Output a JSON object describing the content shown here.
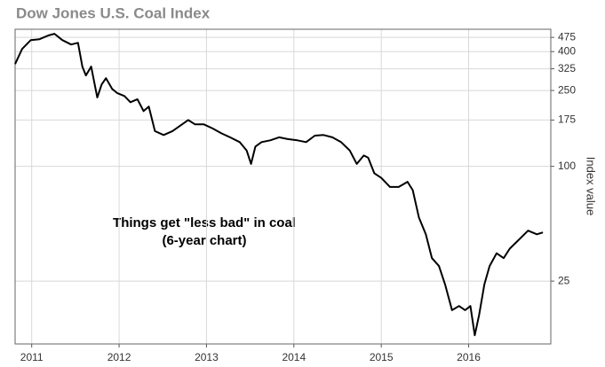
{
  "chart_data": {
    "type": "line",
    "title": "Dow Jones U.S. Coal Index",
    "y_label": "Index value",
    "annotations": [
      "Things get \"less bad\" in coal",
      "(6-year chart)"
    ],
    "color": "#000000",
    "log_y": true,
    "grid": true,
    "y_axis_side": "right",
    "xlim": [
      2010.81,
      2016.94
    ],
    "xticks": [
      2011,
      2012,
      2013,
      2014,
      2015,
      2016
    ],
    "ylim": [
      11.7,
      524
    ],
    "yticks": [
      25,
      100,
      175,
      250,
      325,
      400,
      475
    ],
    "x": [
      2010.81,
      2010.89,
      2010.99,
      2011.09,
      2011.19,
      2011.26,
      2011.35,
      2011.45,
      2011.53,
      2011.58,
      2011.62,
      2011.68,
      2011.75,
      2011.8,
      2011.85,
      2011.92,
      2011.98,
      2012.06,
      2012.13,
      2012.21,
      2012.28,
      2012.34,
      2012.41,
      2012.51,
      2012.61,
      2012.72,
      2012.79,
      2012.87,
      2012.97,
      2013.07,
      2013.17,
      2013.27,
      2013.38,
      2013.46,
      2013.51,
      2013.56,
      2013.63,
      2013.73,
      2013.83,
      2013.93,
      2014.04,
      2014.14,
      2014.24,
      2014.34,
      2014.44,
      2014.54,
      2014.64,
      2014.72,
      2014.8,
      2014.85,
      2014.92,
      2015.0,
      2015.1,
      2015.2,
      2015.3,
      2015.36,
      2015.43,
      2015.51,
      2015.58,
      2015.66,
      2015.73,
      2015.81,
      2015.89,
      2015.96,
      2016.02,
      2016.07,
      2016.12,
      2016.18,
      2016.24,
      2016.32,
      2016.4,
      2016.47,
      2016.57,
      2016.68,
      2016.78,
      2016.85
    ],
    "values": [
      344,
      413,
      460,
      465,
      486,
      496,
      460,
      436,
      445,
      334,
      300,
      334,
      230,
      269,
      290,
      255,
      242,
      234,
      217,
      225,
      195,
      206,
      153,
      146,
      153,
      166,
      175,
      166,
      166,
      158,
      149,
      142,
      134,
      121,
      103,
      127,
      134,
      137,
      142,
      139,
      137,
      134,
      145,
      146,
      142,
      134,
      121,
      103,
      114,
      111,
      92,
      87,
      78,
      78,
      83,
      75,
      54,
      44,
      33,
      30,
      24,
      17.6,
      18.5,
      17.6,
      18.5,
      13,
      16.6,
      24,
      30,
      35,
      33,
      37,
      41,
      46,
      44,
      45
    ]
  }
}
